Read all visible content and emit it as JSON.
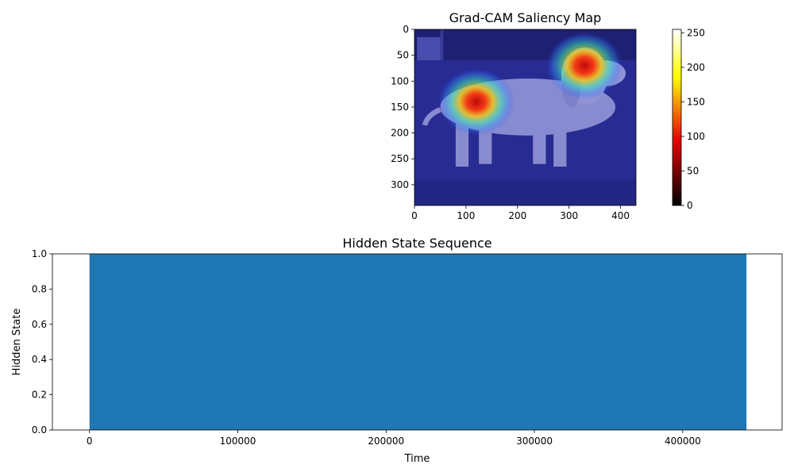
{
  "chart_data": [
    {
      "type": "heatmap",
      "title": "Grad-CAM Saliency Map",
      "image_description": "dog standing on a sofa",
      "image_width": 430,
      "image_height": 340,
      "xlim": [
        0,
        430
      ],
      "ylim": [
        340,
        0
      ],
      "xticks": [
        0,
        100,
        200,
        300,
        400
      ],
      "yticks": [
        0,
        50,
        100,
        150,
        200,
        250,
        300
      ],
      "hotspots": [
        {
          "x": 120,
          "y": 140,
          "intensity": 1.0
        },
        {
          "x": 330,
          "y": 70,
          "intensity": 1.0
        }
      ],
      "colorbar": {
        "colormap": "hot",
        "range": [
          0,
          255
        ],
        "ticks": [
          0,
          50,
          100,
          150,
          200,
          250
        ]
      },
      "overlay_colormap": "jet"
    },
    {
      "type": "area",
      "title": "Hidden State Sequence",
      "xlabel": "Time",
      "ylabel": "Hidden State",
      "xlim": [
        -25000,
        467000
      ],
      "ylim": [
        0.0,
        1.0
      ],
      "xticks": [
        0,
        100000,
        200000,
        300000,
        400000
      ],
      "yticks": [
        "0.0",
        "0.2",
        "0.4",
        "0.6",
        "0.8",
        "1.0"
      ],
      "series": [
        {
          "x": [
            0,
            443000
          ],
          "values": [
            1.0,
            1.0
          ],
          "color": "#1f77b4"
        }
      ]
    }
  ]
}
